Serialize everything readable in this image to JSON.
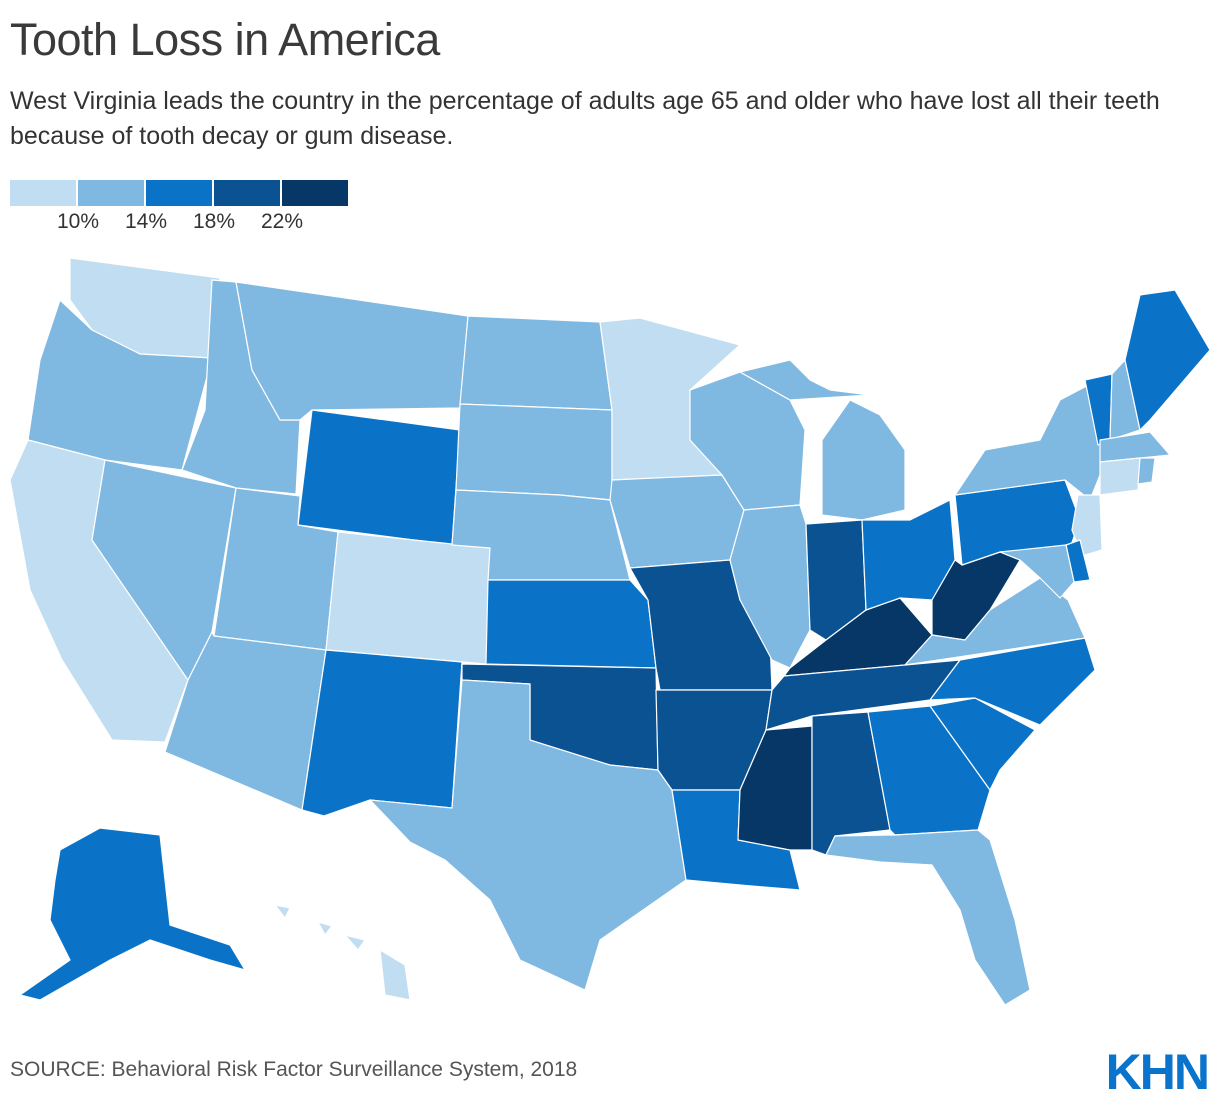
{
  "title": "Tooth Loss in America",
  "subtitle": "West Virginia leads the country in the percentage of adults age 65 and older who have lost all their teeth because of tooth decay or gum disease.",
  "legend": {
    "bins": [
      {
        "color": "#c1ddf1"
      },
      {
        "color": "#7fb8e1"
      },
      {
        "color": "#0a73c8"
      },
      {
        "color": "#0b5293"
      },
      {
        "color": "#063766"
      }
    ],
    "ticks": [
      "10%",
      "14%",
      "18%",
      "22%"
    ]
  },
  "states": {
    "WA": 1,
    "OR": 2,
    "CA": 1,
    "NV": 2,
    "ID": 2,
    "MT": 2,
    "WY": 3,
    "UT": 2,
    "AZ": 2,
    "CO": 1,
    "NM": 3,
    "ND": 2,
    "SD": 2,
    "NE": 2,
    "KS": 3,
    "OK": 4,
    "TX": 2,
    "MN": 1,
    "IA": 2,
    "MO": 4,
    "AR": 4,
    "LA": 3,
    "WI": 2,
    "IL": 2,
    "MS": 5,
    "MI": 2,
    "IN": 4,
    "KY": 5,
    "TN": 4,
    "AL": 4,
    "OH": 3,
    "WV": 5,
    "GA": 3,
    "FL": 2,
    "SC": 3,
    "NC": 3,
    "VA": 2,
    "PA": 3,
    "NY": 2,
    "VT": 3,
    "NH": 2,
    "ME": 3,
    "MA": 2,
    "CT": 1,
    "RI": 2,
    "NJ": 1,
    "DE": 3,
    "MD": 2,
    "AK": 3,
    "HI": 1
  },
  "source": "SOURCE: Behavioral Risk Factor Surveillance System, 2018",
  "logo_text": "KHN"
}
